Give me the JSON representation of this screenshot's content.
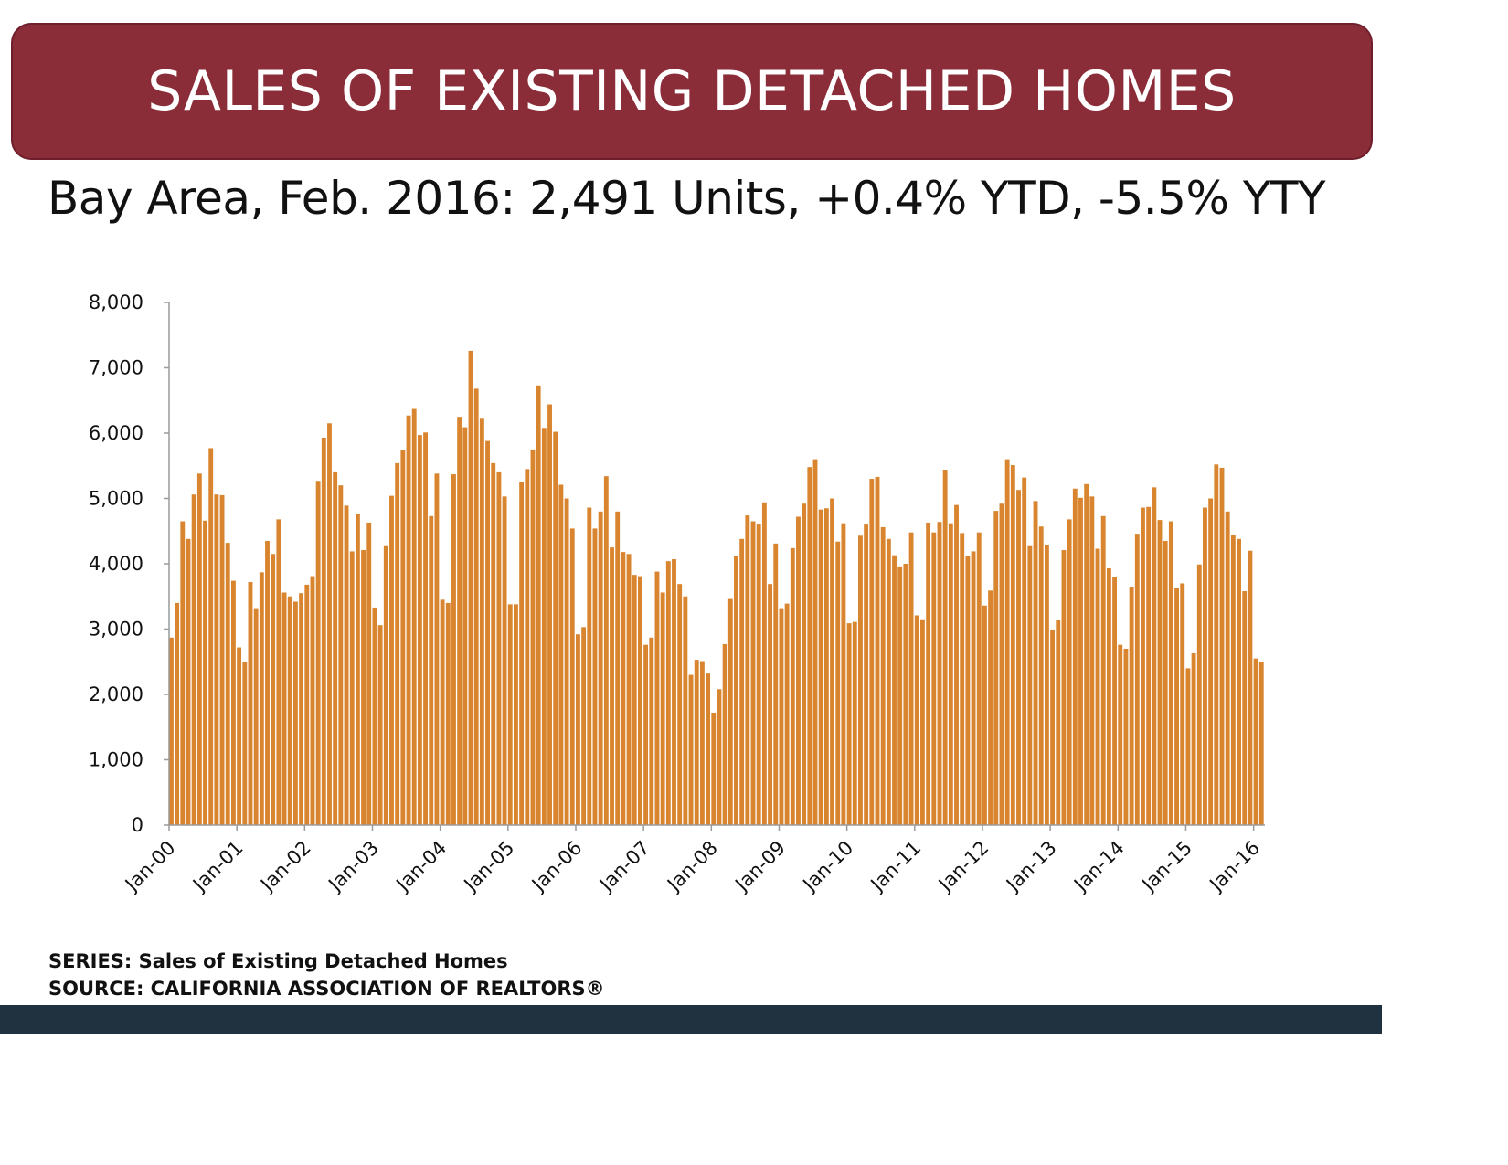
{
  "title": "SALES OF EXISTING DETACHED HOMES",
  "subtitle": "Bay Area, Feb. 2016: 2,491 Units, +0.4% YTD, -5.5% YTY",
  "footnote": {
    "series": "SERIES: Sales of Existing Detached Homes",
    "source": "SOURCE:  CALIFORNIA ASSOCIATION OF REALTORS®"
  },
  "colors": {
    "banner": "#8b2c39",
    "bar": "#d9852f",
    "footer_bar": "#203140"
  },
  "chart_data": {
    "type": "bar",
    "xlabel": "",
    "ylabel": "",
    "ylim": [
      0,
      8000
    ],
    "grid": false,
    "yticks": [
      "0",
      "1,000",
      "2,000",
      "3,000",
      "4,000",
      "5,000",
      "6,000",
      "7,000",
      "8,000"
    ],
    "xtick_labels": [
      "Jan-00",
      "Jan-01",
      "Jan-02",
      "Jan-03",
      "Jan-04",
      "Jan-05",
      "Jan-06",
      "Jan-07",
      "Jan-08",
      "Jan-09",
      "Jan-10",
      "Jan-11",
      "Jan-12",
      "Jan-13",
      "Jan-14",
      "Jan-15",
      "Jan-16"
    ],
    "categories": [
      "Jan-00",
      "Feb-00",
      "Mar-00",
      "Apr-00",
      "May-00",
      "Jun-00",
      "Jul-00",
      "Aug-00",
      "Sep-00",
      "Oct-00",
      "Nov-00",
      "Dec-00",
      "Jan-01",
      "Feb-01",
      "Mar-01",
      "Apr-01",
      "May-01",
      "Jun-01",
      "Jul-01",
      "Aug-01",
      "Sep-01",
      "Oct-01",
      "Nov-01",
      "Dec-01",
      "Jan-02",
      "Feb-02",
      "Mar-02",
      "Apr-02",
      "May-02",
      "Jun-02",
      "Jul-02",
      "Aug-02",
      "Sep-02",
      "Oct-02",
      "Nov-02",
      "Dec-02",
      "Jan-03",
      "Feb-03",
      "Mar-03",
      "Apr-03",
      "May-03",
      "Jun-03",
      "Jul-03",
      "Aug-03",
      "Sep-03",
      "Oct-03",
      "Nov-03",
      "Dec-03",
      "Jan-04",
      "Feb-04",
      "Mar-04",
      "Apr-04",
      "May-04",
      "Jun-04",
      "Jul-04",
      "Aug-04",
      "Sep-04",
      "Oct-04",
      "Nov-04",
      "Dec-04",
      "Jan-05",
      "Feb-05",
      "Mar-05",
      "Apr-05",
      "May-05",
      "Jun-05",
      "Jul-05",
      "Aug-05",
      "Sep-05",
      "Oct-05",
      "Nov-05",
      "Dec-05",
      "Jan-06",
      "Feb-06",
      "Mar-06",
      "Apr-06",
      "May-06",
      "Jun-06",
      "Jul-06",
      "Aug-06",
      "Sep-06",
      "Oct-06",
      "Nov-06",
      "Dec-06",
      "Jan-07",
      "Feb-07",
      "Mar-07",
      "Apr-07",
      "May-07",
      "Jun-07",
      "Jul-07",
      "Aug-07",
      "Sep-07",
      "Oct-07",
      "Nov-07",
      "Dec-07",
      "Jan-08",
      "Feb-08",
      "Mar-08",
      "Apr-08",
      "May-08",
      "Jun-08",
      "Jul-08",
      "Aug-08",
      "Sep-08",
      "Oct-08",
      "Nov-08",
      "Dec-08",
      "Jan-09",
      "Feb-09",
      "Mar-09",
      "Apr-09",
      "May-09",
      "Jun-09",
      "Jul-09",
      "Aug-09",
      "Sep-09",
      "Oct-09",
      "Nov-09",
      "Dec-09",
      "Jan-10",
      "Feb-10",
      "Mar-10",
      "Apr-10",
      "May-10",
      "Jun-10",
      "Jul-10",
      "Aug-10",
      "Sep-10",
      "Oct-10",
      "Nov-10",
      "Dec-10",
      "Jan-11",
      "Feb-11",
      "Mar-11",
      "Apr-11",
      "May-11",
      "Jun-11",
      "Jul-11",
      "Aug-11",
      "Sep-11",
      "Oct-11",
      "Nov-11",
      "Dec-11",
      "Jan-12",
      "Feb-12",
      "Mar-12",
      "Apr-12",
      "May-12",
      "Jun-12",
      "Jul-12",
      "Aug-12",
      "Sep-12",
      "Oct-12",
      "Nov-12",
      "Dec-12",
      "Jan-13",
      "Feb-13",
      "Mar-13",
      "Apr-13",
      "May-13",
      "Jun-13",
      "Jul-13",
      "Aug-13",
      "Sep-13",
      "Oct-13",
      "Nov-13",
      "Dec-13",
      "Jan-14",
      "Feb-14",
      "Mar-14",
      "Apr-14",
      "May-14",
      "Jun-14",
      "Jul-14",
      "Aug-14",
      "Sep-14",
      "Oct-14",
      "Nov-14",
      "Dec-14",
      "Jan-15",
      "Feb-15",
      "Mar-15",
      "Apr-15",
      "May-15",
      "Jun-15",
      "Jul-15",
      "Aug-15",
      "Sep-15",
      "Oct-15",
      "Nov-15",
      "Dec-15",
      "Jan-16",
      "Feb-16"
    ],
    "values": [
      2870,
      3400,
      4650,
      4380,
      5060,
      5380,
      4660,
      5770,
      5060,
      5050,
      4320,
      3740,
      2720,
      2490,
      3720,
      3320,
      3870,
      4350,
      4150,
      4680,
      3560,
      3500,
      3420,
      3550,
      3680,
      3810,
      5270,
      5930,
      6150,
      5400,
      5200,
      4890,
      4190,
      4760,
      4210,
      4630,
      3330,
      3060,
      4270,
      5040,
      5540,
      5740,
      6270,
      6370,
      5970,
      6010,
      4730,
      5380,
      3450,
      3400,
      5370,
      6250,
      6090,
      7260,
      6680,
      6220,
      5880,
      5540,
      5400,
      5030,
      3380,
      3380,
      5250,
      5450,
      5750,
      6730,
      6080,
      6440,
      6020,
      5210,
      5000,
      4540,
      2920,
      3030,
      4860,
      4540,
      4800,
      5340,
      4250,
      4800,
      4180,
      4150,
      3830,
      3810,
      2760,
      2870,
      3880,
      3560,
      4040,
      4070,
      3690,
      3500,
      2300,
      2530,
      2510,
      2320,
      1720,
      2080,
      2770,
      3460,
      4120,
      4380,
      4740,
      4650,
      4600,
      4940,
      3690,
      4310,
      3320,
      3390,
      4240,
      4720,
      4920,
      5480,
      5600,
      4830,
      4850,
      5000,
      4340,
      4620,
      3090,
      3110,
      4430,
      4600,
      5300,
      5330,
      4560,
      4380,
      4130,
      3960,
      4000,
      4480,
      3210,
      3150,
      4630,
      4480,
      4640,
      5440,
      4620,
      4900,
      4470,
      4120,
      4190,
      4480,
      3360,
      3590,
      4810,
      4920,
      5600,
      5510,
      5130,
      5320,
      4270,
      4960,
      4570,
      4280,
      2980,
      3140,
      4210,
      4680,
      5150,
      5010,
      5220,
      5030,
      4230,
      4730,
      3930,
      3800,
      2760,
      2700,
      3650,
      4460,
      4860,
      4870,
      5170,
      4670,
      4350,
      4650,
      3630,
      3700,
      2400,
      2630,
      3990,
      4860,
      5000,
      5520,
      5470,
      4800,
      4440,
      4380,
      3580,
      4200,
      2550,
      2491
    ]
  }
}
